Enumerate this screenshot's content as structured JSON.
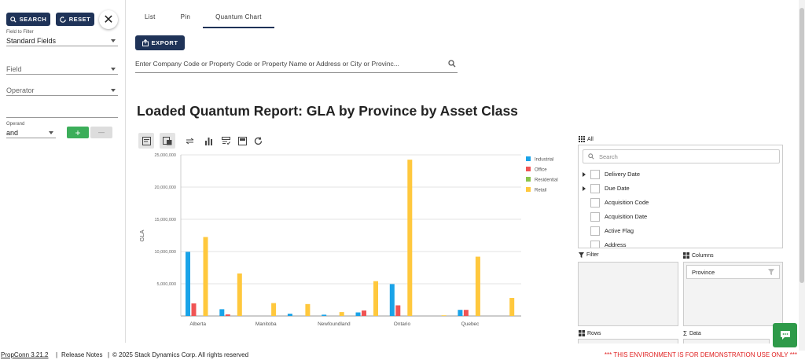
{
  "sidebar": {
    "search_label": "SEARCH",
    "reset_label": "RESET",
    "field_to_filter_label": "Field to Filter",
    "field_to_filter_value": "Standard Fields",
    "field_placeholder": "Field",
    "operator_placeholder": "Operator",
    "operand_label": "Operand",
    "operand_value": "and",
    "add_label": "+",
    "remove_label": "—"
  },
  "tabs": [
    "List",
    "Pin",
    "Quantum Chart"
  ],
  "export_label": "EXPORT",
  "search": {
    "placeholder": "Enter Company Code or Property Code or Property Name or Address or City or Provinc..."
  },
  "report_title": "Loaded Quantum Report: GLA by Province by Asset Class",
  "chart_data": {
    "type": "bar",
    "ylabel": "GLA",
    "ylim": [
      0,
      25000000
    ],
    "yticks": [
      "25,000,000",
      "20,000,000",
      "15,000,000",
      "10,000,000",
      "5,000,000"
    ],
    "categories": [
      "Alberta",
      "",
      "Manitoba",
      "",
      "Newfoundland",
      "",
      "Ontario",
      "",
      "Quebec",
      ""
    ],
    "series": [
      {
        "name": "Industrial",
        "color": "#1aa3e8",
        "values": [
          9950000,
          1050000,
          0,
          350000,
          200000,
          550000,
          4950000,
          0,
          950000,
          0
        ]
      },
      {
        "name": "Office",
        "color": "#f05454",
        "values": [
          1950000,
          250000,
          0,
          0,
          0,
          850000,
          1650000,
          0,
          950000,
          0
        ]
      },
      {
        "name": "Residential",
        "color": "#8bc34a",
        "values": [
          0,
          0,
          0,
          0,
          0,
          0,
          0,
          0,
          0,
          0
        ]
      },
      {
        "name": "Retail",
        "color": "#ffc83d",
        "values": [
          12250000,
          6600000,
          2000000,
          1850000,
          600000,
          5400000,
          24250000,
          100000,
          9200000,
          2800000
        ]
      }
    ]
  },
  "pivot": {
    "all_label": "All",
    "search_placeholder": "Search",
    "fields": [
      "Delivery Date",
      "Due Date",
      "Acquisition Code",
      "Acquisition Date",
      "Active Flag",
      "Address"
    ],
    "filter_label": "Filter",
    "columns_label": "Columns",
    "column_chip": "Province",
    "rows_label": "Rows",
    "data_label": "Data"
  },
  "footer": {
    "version": "PropConn 3.21.2",
    "sep1": "|",
    "release_notes": "Release Notes",
    "sep2": "|",
    "copyright": "© 2025 Stack Dynamics Corp. All rights reserved",
    "warning": "*** THIS ENVIRONMENT IS FOR DEMONSTRATION USE ONLY ***"
  }
}
